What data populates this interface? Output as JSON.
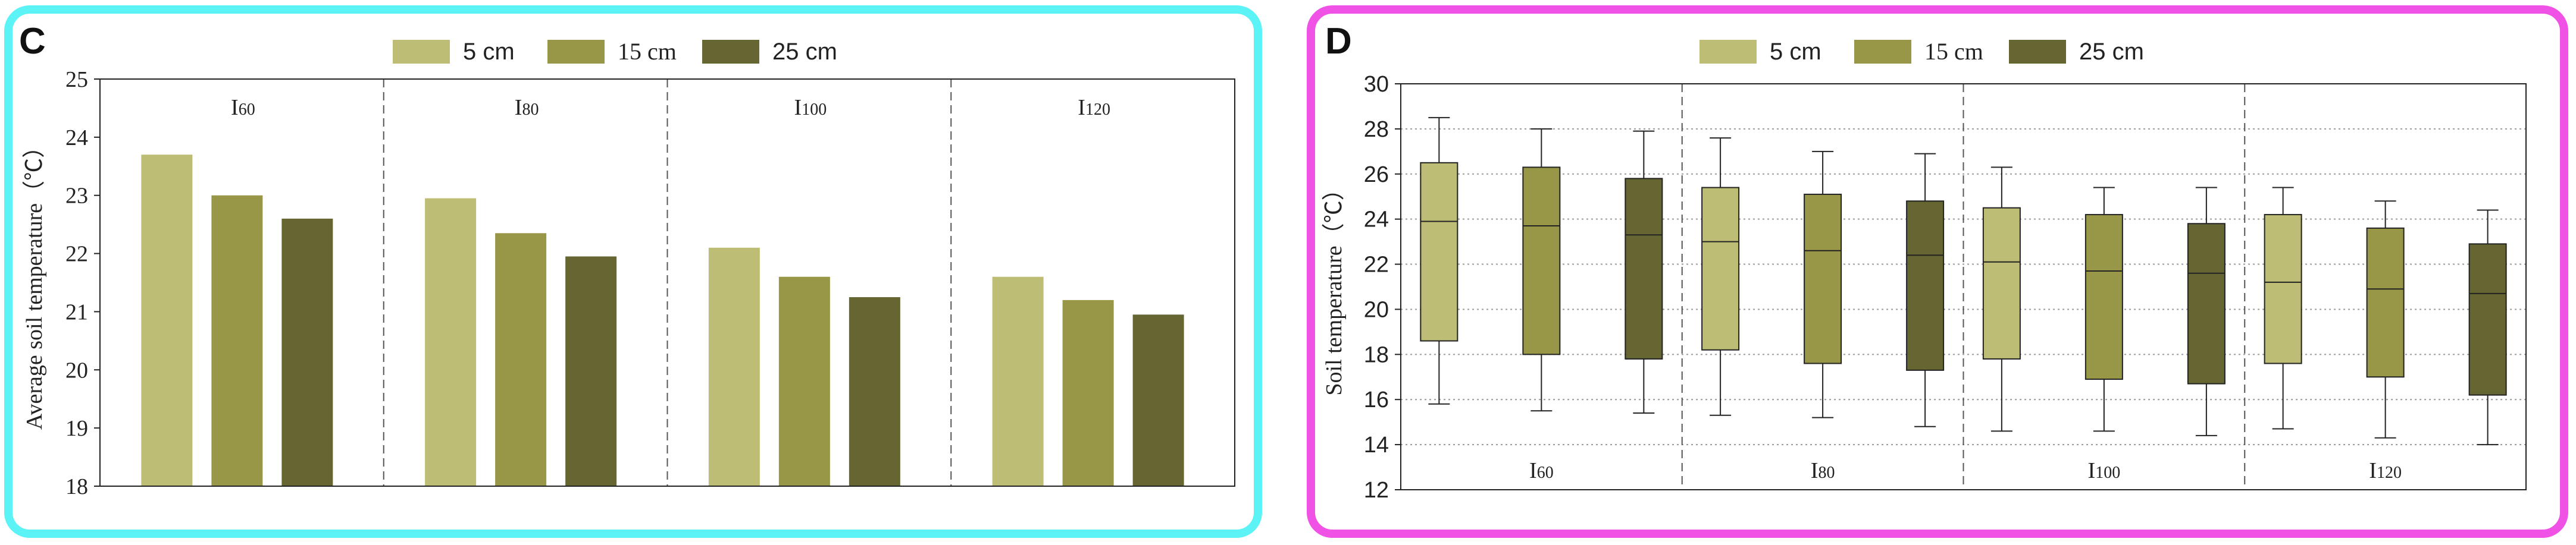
{
  "colors": {
    "s5": "#bdbd75",
    "s15": "#979747",
    "s25": "#666632",
    "border_c": "#5cf3f6",
    "border_d": "#f052e6"
  },
  "chart_data": [
    {
      "panel": "C",
      "type": "bar",
      "title": "",
      "xlabel": "",
      "ylabel": "Average soil temperature（℃）",
      "ylim": [
        18,
        25
      ],
      "yticks": [
        "18",
        "19",
        "20",
        "21",
        "22",
        "23",
        "24",
        "25"
      ],
      "groups": [
        {
          "label": "I",
          "sub": "60"
        },
        {
          "label": "I",
          "sub": "80"
        },
        {
          "label": "I",
          "sub": "100"
        },
        {
          "label": "I",
          "sub": "120"
        }
      ],
      "legend": [
        "5 cm",
        "15 cm",
        "25 cm"
      ],
      "series": [
        {
          "name": "5 cm",
          "values": [
            23.7,
            22.95,
            22.1,
            21.6
          ]
        },
        {
          "name": "15 cm",
          "values": [
            23.0,
            22.35,
            21.6,
            21.2
          ]
        },
        {
          "name": "25 cm",
          "values": [
            22.6,
            21.95,
            21.25,
            20.95
          ]
        }
      ]
    },
    {
      "panel": "D",
      "type": "box",
      "title": "",
      "xlabel": "",
      "ylabel": "Soil temperature（℃）",
      "ylim": [
        12,
        30
      ],
      "yticks": [
        "12",
        "14",
        "16",
        "18",
        "20",
        "22",
        "24",
        "26",
        "28",
        "30"
      ],
      "groups": [
        {
          "label": "I",
          "sub": "60"
        },
        {
          "label": "I",
          "sub": "80"
        },
        {
          "label": "I",
          "sub": "100"
        },
        {
          "label": "I",
          "sub": "120"
        }
      ],
      "legend": [
        "5 cm",
        "15 cm",
        "25 cm"
      ],
      "series": [
        {
          "name": "5 cm",
          "boxes": [
            {
              "min": 15.8,
              "q1": 18.6,
              "median": 23.9,
              "q3": 26.5,
              "max": 28.5
            },
            {
              "min": 15.3,
              "q1": 18.2,
              "median": 23.0,
              "q3": 25.4,
              "max": 27.6
            },
            {
              "min": 14.6,
              "q1": 17.8,
              "median": 22.1,
              "q3": 24.5,
              "max": 26.3
            },
            {
              "min": 14.7,
              "q1": 17.6,
              "median": 21.2,
              "q3": 24.2,
              "max": 25.4
            }
          ]
        },
        {
          "name": "15 cm",
          "boxes": [
            {
              "min": 15.5,
              "q1": 18.0,
              "median": 23.7,
              "q3": 26.3,
              "max": 28.0
            },
            {
              "min": 15.2,
              "q1": 17.6,
              "median": 22.6,
              "q3": 25.1,
              "max": 27.0
            },
            {
              "min": 14.6,
              "q1": 16.9,
              "median": 21.7,
              "q3": 24.2,
              "max": 25.4
            },
            {
              "min": 14.3,
              "q1": 17.0,
              "median": 20.9,
              "q3": 23.6,
              "max": 24.8
            }
          ]
        },
        {
          "name": "25 cm",
          "boxes": [
            {
              "min": 15.4,
              "q1": 17.8,
              "median": 23.3,
              "q3": 25.8,
              "max": 27.9
            },
            {
              "min": 14.8,
              "q1": 17.3,
              "median": 22.4,
              "q3": 24.8,
              "max": 26.9
            },
            {
              "min": 14.4,
              "q1": 16.7,
              "median": 21.6,
              "q3": 23.8,
              "max": 25.4
            },
            {
              "min": 14.0,
              "q1": 16.2,
              "median": 20.7,
              "q3": 22.9,
              "max": 24.4
            }
          ]
        }
      ]
    }
  ]
}
